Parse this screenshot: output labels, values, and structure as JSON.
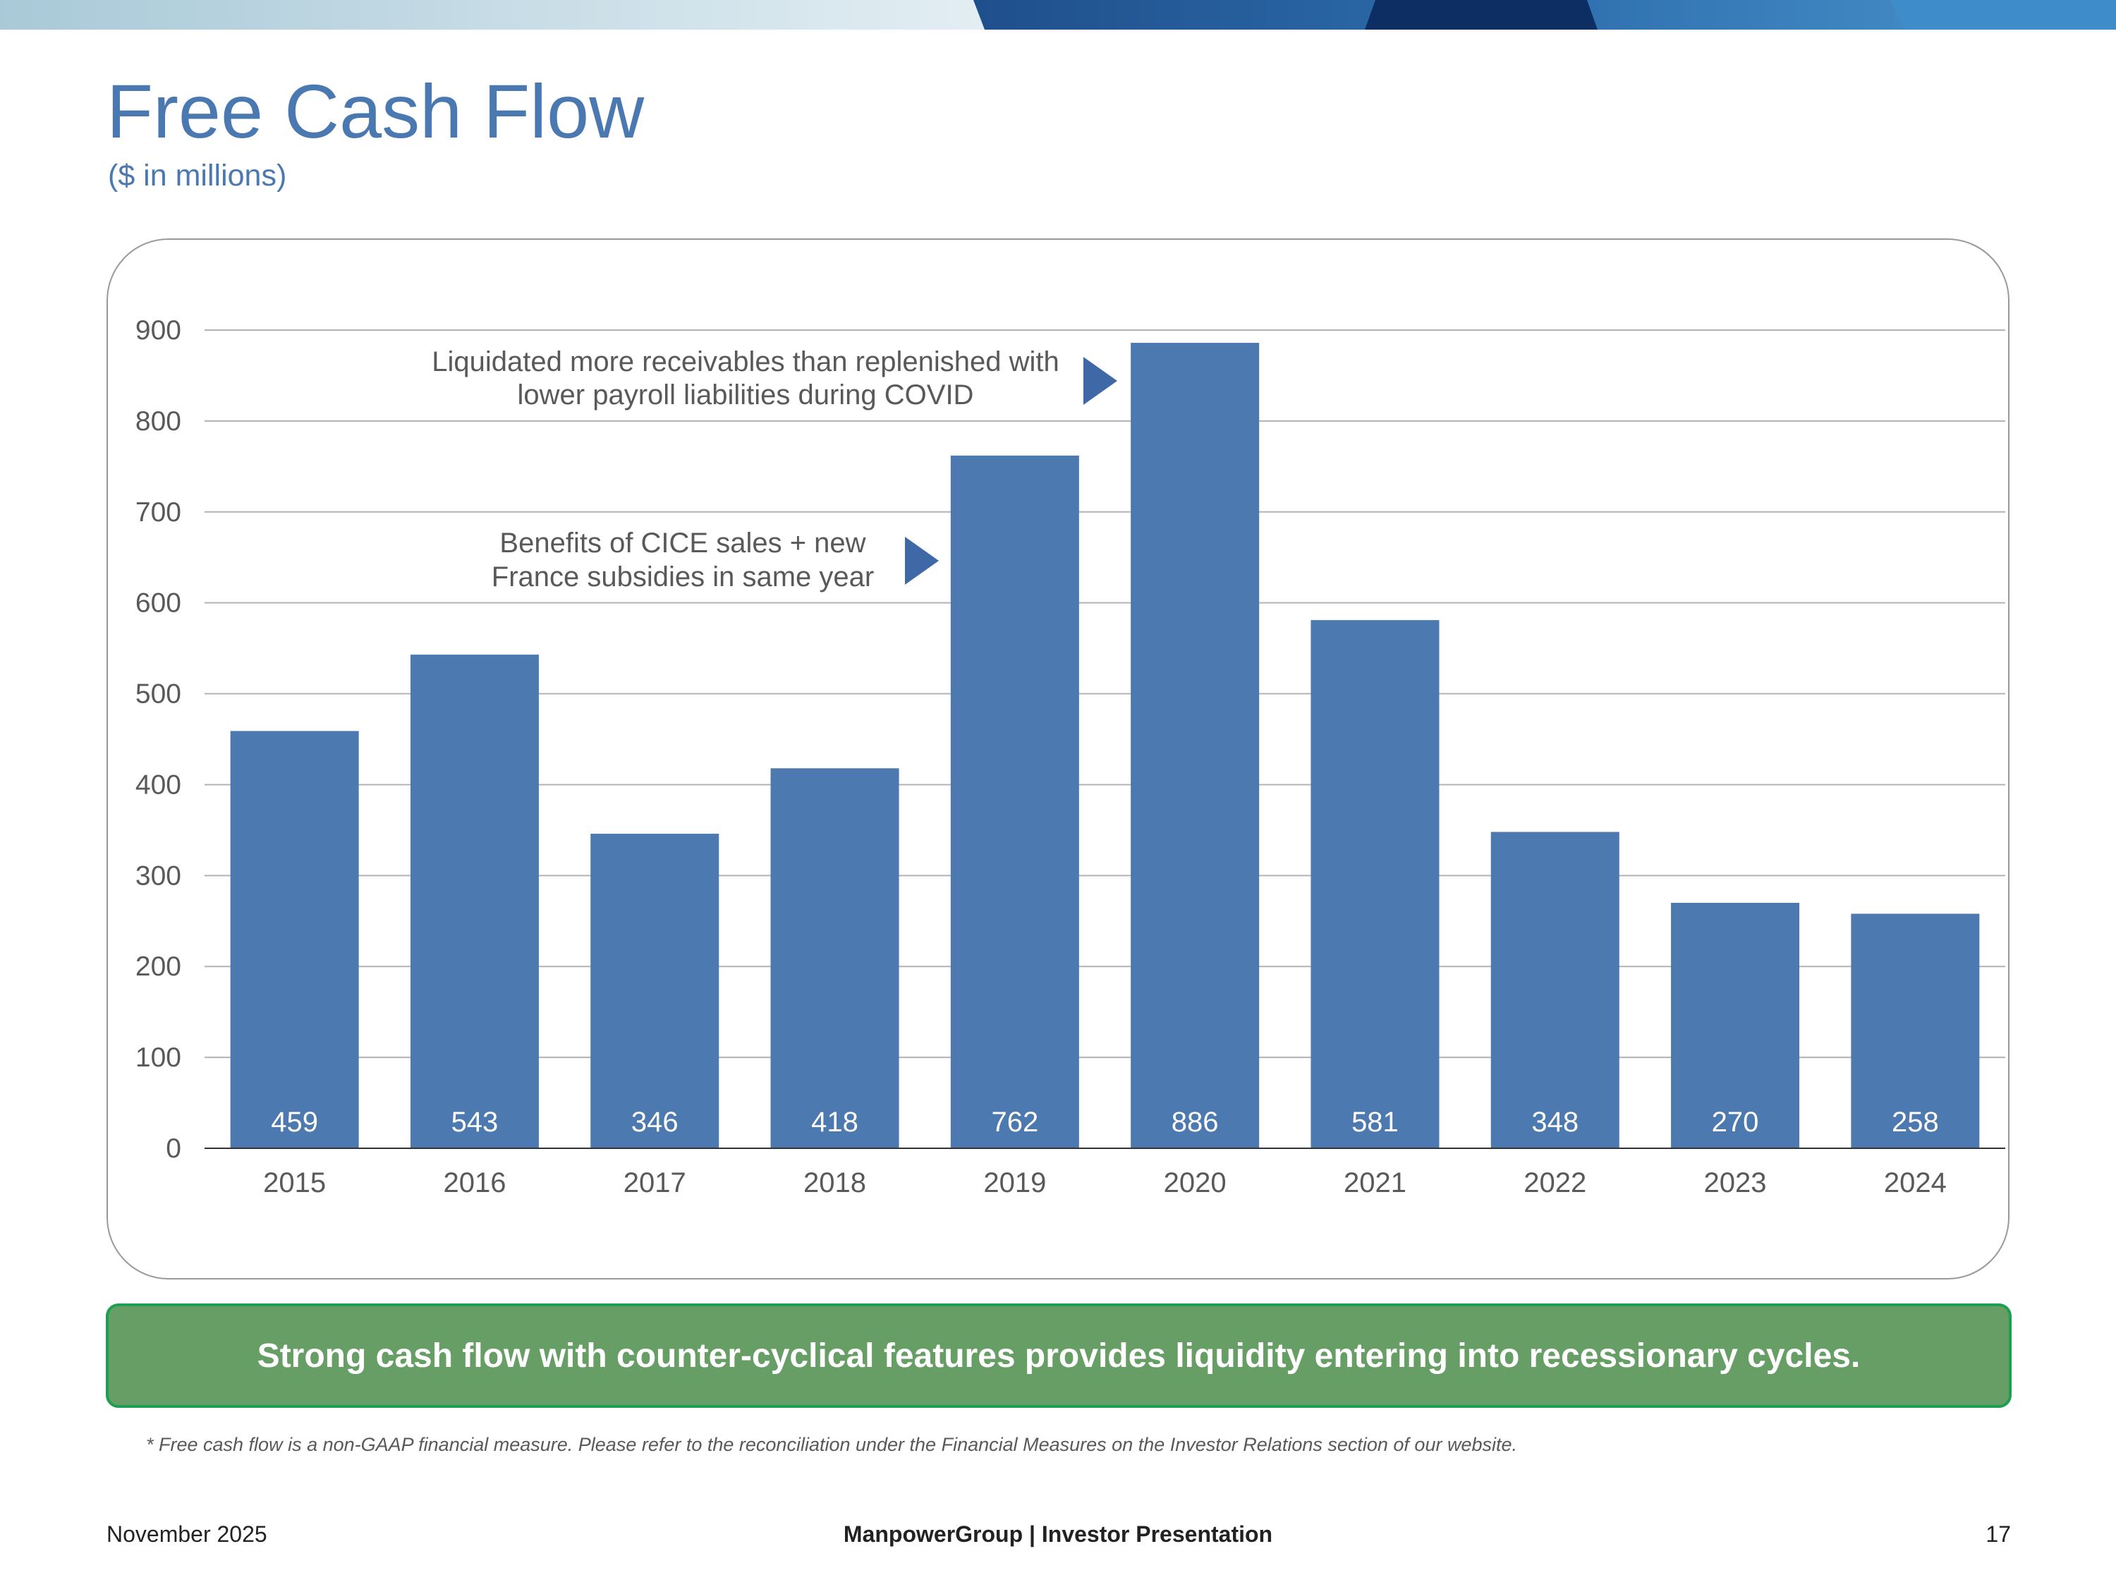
{
  "slide": {
    "title": "Free Cash Flow",
    "subtitle": "($ in millions)",
    "takeaway": "Strong cash flow with counter-cyclical features provides liquidity entering into recessionary cycles.",
    "footnote": "* Free cash flow is a non-GAAP financial measure. Please refer to the reconciliation under the Financial Measures on the Investor Relations section of our website.",
    "footer_left": "November 2025",
    "footer_center": "ManpowerGroup  |  Investor Presentation",
    "footer_right": "17"
  },
  "colors": {
    "title": "#4a78b0",
    "bar": "#4c79b0",
    "takeaway_bg": "#679e65",
    "takeaway_border": "#1e9e52"
  },
  "chart_data": {
    "type": "bar",
    "title": "",
    "xlabel": "",
    "ylabel": "",
    "categories": [
      "2015",
      "2016",
      "2017",
      "2018",
      "2019",
      "2020",
      "2021",
      "2022",
      "2023",
      "2024"
    ],
    "values": [
      459,
      543,
      346,
      418,
      762,
      886,
      581,
      348,
      270,
      258
    ],
    "data_labels": [
      "459",
      "543",
      "346",
      "418",
      "762",
      "886",
      "581",
      "348",
      "270",
      "258"
    ],
    "ylim": [
      0,
      900
    ],
    "yticks": [
      0,
      100,
      200,
      300,
      400,
      500,
      600,
      700,
      800,
      900
    ],
    "grid": true,
    "legend": "none",
    "annotations": [
      {
        "lines": [
          "Liquidated more receivables than replenished with",
          "lower payroll liabilities during COVID"
        ],
        "points_to": "2020"
      },
      {
        "lines": [
          "Benefits of CICE sales + new",
          "France subsidies in same year"
        ],
        "points_to": "2019"
      }
    ]
  }
}
